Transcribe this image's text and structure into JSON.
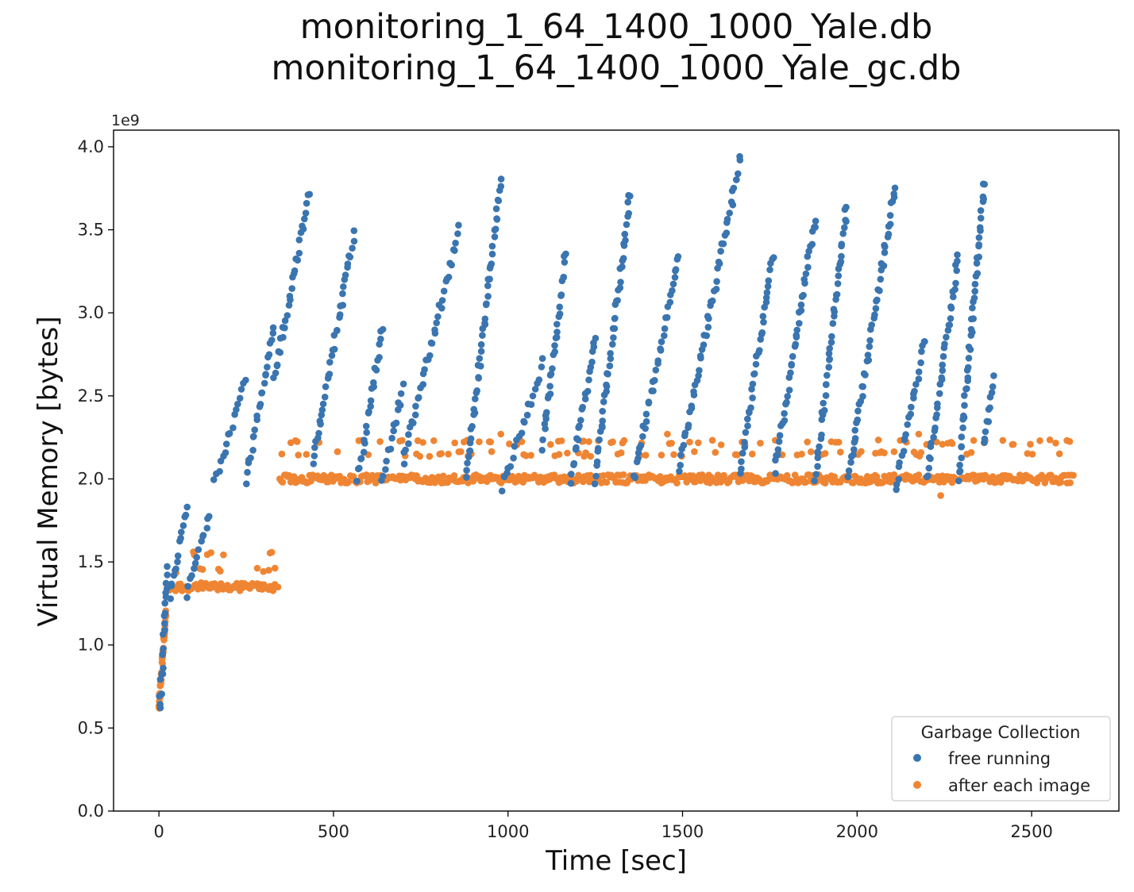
{
  "chart_data": {
    "type": "scatter",
    "title_lines": [
      "monitoring_1_64_1400_1000_Yale.db",
      "monitoring_1_64_1400_1000_Yale_gc.db"
    ],
    "xlabel": "Time [sec]",
    "ylabel": "Virtual Memory [bytes]",
    "y_offset_label": "1e9",
    "xlim": [
      -130,
      2750
    ],
    "ylim": [
      0,
      4.1
    ],
    "x_ticks": [
      0,
      500,
      1000,
      1500,
      2000,
      2500
    ],
    "x_tick_labels": [
      "0",
      "500",
      "1000",
      "1500",
      "2000",
      "2500"
    ],
    "y_ticks": [
      0,
      0.5,
      1.0,
      1.5,
      2.0,
      2.5,
      3.0,
      3.5,
      4.0
    ],
    "y_tick_labels": [
      "0.0",
      "0.5",
      "1.0",
      "1.5",
      "2.0",
      "2.5",
      "3.0",
      "3.5",
      "4.0"
    ],
    "y_unit": "1e9 bytes",
    "grid": false,
    "legend": {
      "title": "Garbage Collection",
      "position": "bottom-right",
      "entries": [
        "free running",
        "after each image"
      ]
    },
    "series": [
      {
        "name": "free running",
        "color": "#3a75b0",
        "segments": [
          {
            "x": [
              2,
              25
            ],
            "y": [
              0.62,
              1.45
            ]
          },
          {
            "x": [
              30,
              80
            ],
            "y": [
              1.3,
              1.82
            ]
          },
          {
            "x": [
              80,
              145
            ],
            "y": [
              1.3,
              1.8
            ]
          },
          {
            "x": [
              160,
              250
            ],
            "y": [
              2.0,
              2.6
            ]
          },
          {
            "x": [
              250,
              330
            ],
            "y": [
              2.0,
              2.9
            ]
          },
          {
            "x": [
              330,
              430
            ],
            "y": [
              2.6,
              3.72
            ]
          },
          {
            "x": [
              440,
              560
            ],
            "y": [
              2.1,
              3.47
            ]
          },
          {
            "x": [
              570,
              640
            ],
            "y": [
              2.0,
              2.9
            ]
          },
          {
            "x": [
              640,
              700
            ],
            "y": [
              2.0,
              2.55
            ]
          },
          {
            "x": [
              700,
              860
            ],
            "y": [
              2.1,
              3.5
            ]
          },
          {
            "x": [
              880,
              980
            ],
            "y": [
              2.0,
              3.8
            ]
          },
          {
            "x": [
              985,
              1100
            ],
            "y": [
              1.95,
              2.7
            ]
          },
          {
            "x": [
              1100,
              1165
            ],
            "y": [
              2.2,
              3.35
            ]
          },
          {
            "x": [
              1180,
              1250
            ],
            "y": [
              2.0,
              2.85
            ]
          },
          {
            "x": [
              1250,
              1350
            ],
            "y": [
              2.0,
              3.72
            ]
          },
          {
            "x": [
              1360,
              1490
            ],
            "y": [
              2.0,
              3.35
            ]
          },
          {
            "x": [
              1490,
              1665
            ],
            "y": [
              2.05,
              3.93
            ]
          },
          {
            "x": [
              1665,
              1760
            ],
            "y": [
              2.05,
              3.35
            ]
          },
          {
            "x": [
              1765,
              1880
            ],
            "y": [
              2.05,
              3.57
            ]
          },
          {
            "x": [
              1880,
              1970
            ],
            "y": [
              2.0,
              3.65
            ]
          },
          {
            "x": [
              1975,
              2110
            ],
            "y": [
              2.0,
              3.78
            ]
          },
          {
            "x": [
              2110,
              2195
            ],
            "y": [
              1.95,
              2.85
            ]
          },
          {
            "x": [
              2200,
              2290
            ],
            "y": [
              2.0,
              3.35
            ]
          },
          {
            "x": [
              2290,
              2365
            ],
            "y": [
              2.0,
              3.8
            ]
          },
          {
            "x": [
              2365,
              2390
            ],
            "y": [
              2.2,
              2.6
            ]
          }
        ]
      },
      {
        "name": "after each image",
        "color": "#ef8533",
        "baseline_segments": [
          {
            "x_range": [
              0,
              20
            ],
            "y_start": 0.62,
            "y_end": 1.2
          },
          {
            "x_range": [
              20,
              340
            ],
            "levels": [
              1.35,
              1.45,
              1.55
            ]
          },
          {
            "x_range": [
              345,
              2620
            ],
            "levels": [
              2.0,
              2.15,
              2.22
            ],
            "outliers": [
              1.9,
              2.27
            ]
          }
        ]
      }
    ]
  }
}
